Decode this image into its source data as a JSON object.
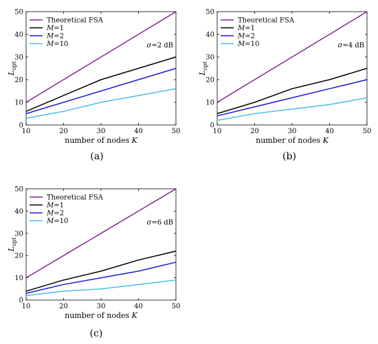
{
  "chart_data": [
    {
      "type": "line",
      "panel": "(a)",
      "annotation": "σ=2 dB",
      "xlabel": "number of nodes K",
      "ylabel": "L_opt",
      "xlim": [
        10,
        50
      ],
      "ylim": [
        0,
        50
      ],
      "xticks": [
        10,
        20,
        30,
        40,
        50
      ],
      "yticks": [
        0,
        10,
        20,
        30,
        40,
        50
      ],
      "grid": false,
      "legend": "top-left",
      "x": [
        10,
        20,
        30,
        40,
        50
      ],
      "series": [
        {
          "name": "Theoretical FSA",
          "color": "#7b2a8c",
          "values": [
            10,
            20,
            30,
            40,
            50
          ]
        },
        {
          "name": "M=1",
          "color": "#000000",
          "values": [
            6,
            13,
            20,
            25,
            30
          ]
        },
        {
          "name": "M=2",
          "color": "#1a1ad6",
          "values": [
            5,
            10,
            15,
            20,
            25
          ]
        },
        {
          "name": "M=10",
          "color": "#4bbde8",
          "values": [
            3,
            6,
            10,
            13,
            16
          ]
        }
      ]
    },
    {
      "type": "line",
      "panel": "(b)",
      "annotation": "σ=4 dB",
      "xlabel": "number of nodes K",
      "ylabel": "L_opt",
      "xlim": [
        10,
        50
      ],
      "ylim": [
        0,
        50
      ],
      "xticks": [
        10,
        20,
        30,
        40,
        50
      ],
      "yticks": [
        0,
        10,
        20,
        30,
        40,
        50
      ],
      "grid": false,
      "legend": "top-left",
      "x": [
        10,
        20,
        30,
        40,
        50
      ],
      "series": [
        {
          "name": "Theoretical FSA",
          "color": "#7b2a8c",
          "values": [
            10,
            20,
            30,
            40,
            50
          ]
        },
        {
          "name": "M=1",
          "color": "#000000",
          "values": [
            5,
            10,
            16,
            20,
            25
          ]
        },
        {
          "name": "M=2",
          "color": "#1a1ad6",
          "values": [
            4,
            8,
            12,
            16,
            20
          ]
        },
        {
          "name": "M=10",
          "color": "#4bbde8",
          "values": [
            2,
            5,
            7,
            9,
            12
          ]
        }
      ]
    },
    {
      "type": "line",
      "panel": "(c)",
      "annotation": "σ=6 dB",
      "xlabel": "number of nodes K",
      "ylabel": "L_opt",
      "xlim": [
        10,
        50
      ],
      "ylim": [
        0,
        50
      ],
      "xticks": [
        10,
        20,
        30,
        40,
        50
      ],
      "yticks": [
        0,
        10,
        20,
        30,
        40,
        50
      ],
      "grid": false,
      "legend": "top-left",
      "x": [
        10,
        20,
        30,
        40,
        50
      ],
      "series": [
        {
          "name": "Theoretical FSA",
          "color": "#7b2a8c",
          "values": [
            10,
            20,
            30,
            40,
            50
          ]
        },
        {
          "name": "M=1",
          "color": "#000000",
          "values": [
            4,
            9,
            13,
            18,
            22
          ]
        },
        {
          "name": "M=2",
          "color": "#1a1ad6",
          "values": [
            3,
            7,
            10,
            13,
            17
          ]
        },
        {
          "name": "M=10",
          "color": "#4bbde8",
          "values": [
            2,
            4,
            5,
            7,
            9
          ]
        }
      ]
    }
  ]
}
